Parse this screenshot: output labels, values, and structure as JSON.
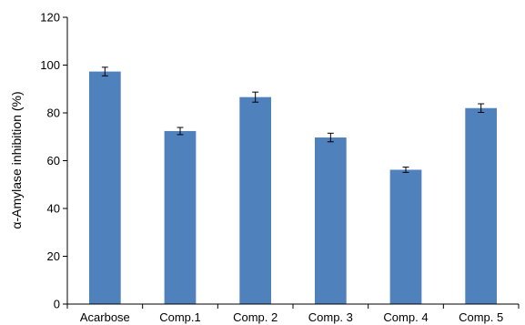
{
  "chart_data": {
    "type": "bar",
    "title": "",
    "xlabel": "",
    "ylabel": "α-Amylase inhibition (%)",
    "categories": [
      "Acarbose",
      "Comp.1",
      "Comp. 2",
      "Comp. 3",
      "Comp. 4",
      "Comp. 5"
    ],
    "values": [
      97.3,
      72.4,
      86.6,
      69.7,
      56.2,
      82.0
    ],
    "errors": [
      1.8,
      1.5,
      2.1,
      1.8,
      1.1,
      1.8
    ],
    "ylim": [
      0,
      120
    ],
    "yticks": [
      "0",
      "20",
      "40",
      "60",
      "80",
      "100",
      "120"
    ],
    "grid": false,
    "legend": "none",
    "colors": {
      "bar": "#4f81bd",
      "axis": "#000000",
      "error_bar": "#000000"
    }
  }
}
